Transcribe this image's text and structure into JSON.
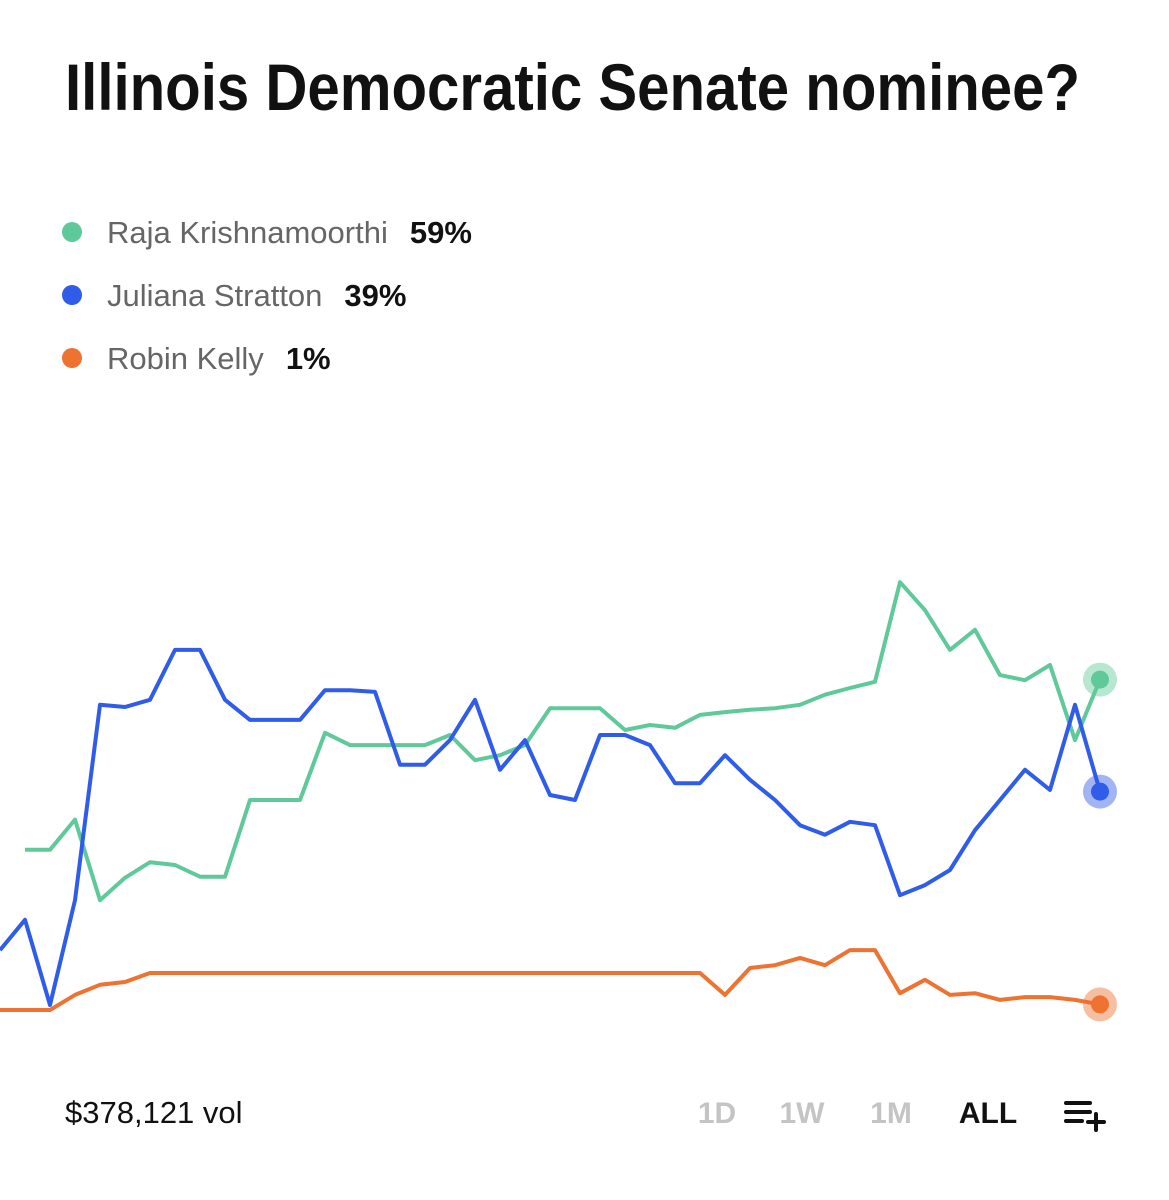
{
  "chart_data": {
    "type": "line",
    "title": "Illinois Democratic Senate nominee?",
    "ylim": [
      0,
      80
    ],
    "series": [
      {
        "name": "Raja Krishnamoorthi",
        "color": "#5fc99a",
        "value_label": "59%",
        "values": [
          null,
          28.6,
          28.6,
          34,
          19.6,
          23.6,
          26.4,
          25.9,
          23.8,
          23.8,
          37.5,
          37.5,
          37.5,
          49.5,
          47.3,
          47.3,
          47.3,
          47.3,
          49.1,
          44.6,
          45.5,
          47.3,
          53.9,
          53.9,
          53.9,
          50,
          50.9,
          50.4,
          52.7,
          53.2,
          53.6,
          53.9,
          54.5,
          56.3,
          57.5,
          58.6,
          76.4,
          71.4,
          64.3,
          67.9,
          59.8,
          58.9,
          61.6,
          48.2,
          59
        ]
      },
      {
        "name": "Juliana Stratton",
        "color": "#2f5ce8",
        "value_label": "39%",
        "values": [
          10.7,
          16.1,
          0.9,
          19.6,
          54.5,
          54.1,
          55.4,
          64.3,
          64.3,
          55.4,
          51.8,
          51.8,
          51.8,
          57.1,
          57.1,
          56.8,
          43.8,
          43.8,
          48.2,
          55.4,
          42.9,
          48.2,
          38.4,
          37.5,
          49.1,
          49.1,
          47.3,
          40.5,
          40.5,
          45.5,
          41.1,
          37.5,
          33,
          31.3,
          33.6,
          33,
          20.5,
          22.3,
          25,
          32.1,
          37.5,
          42.9,
          39.3,
          54.5,
          39
        ]
      },
      {
        "name": "Robin Kelly",
        "color": "#ee7230",
        "value_label": "1%",
        "values": [
          0,
          0,
          0,
          2.7,
          4.5,
          5,
          6.6,
          6.6,
          6.6,
          6.6,
          6.6,
          6.6,
          6.6,
          6.6,
          6.6,
          6.6,
          6.6,
          6.6,
          6.6,
          6.6,
          6.6,
          6.6,
          6.6,
          6.6,
          6.6,
          6.6,
          6.6,
          6.6,
          6.6,
          2.7,
          7.5,
          8,
          9.3,
          8,
          10.7,
          10.7,
          3,
          5.4,
          2.7,
          3,
          1.8,
          2.3,
          2.3,
          1.8,
          1
        ]
      }
    ],
    "volume_label": "$378,121 vol",
    "ranges": [
      "1D",
      "1W",
      "1M",
      "ALL"
    ],
    "selected_range": "ALL"
  }
}
